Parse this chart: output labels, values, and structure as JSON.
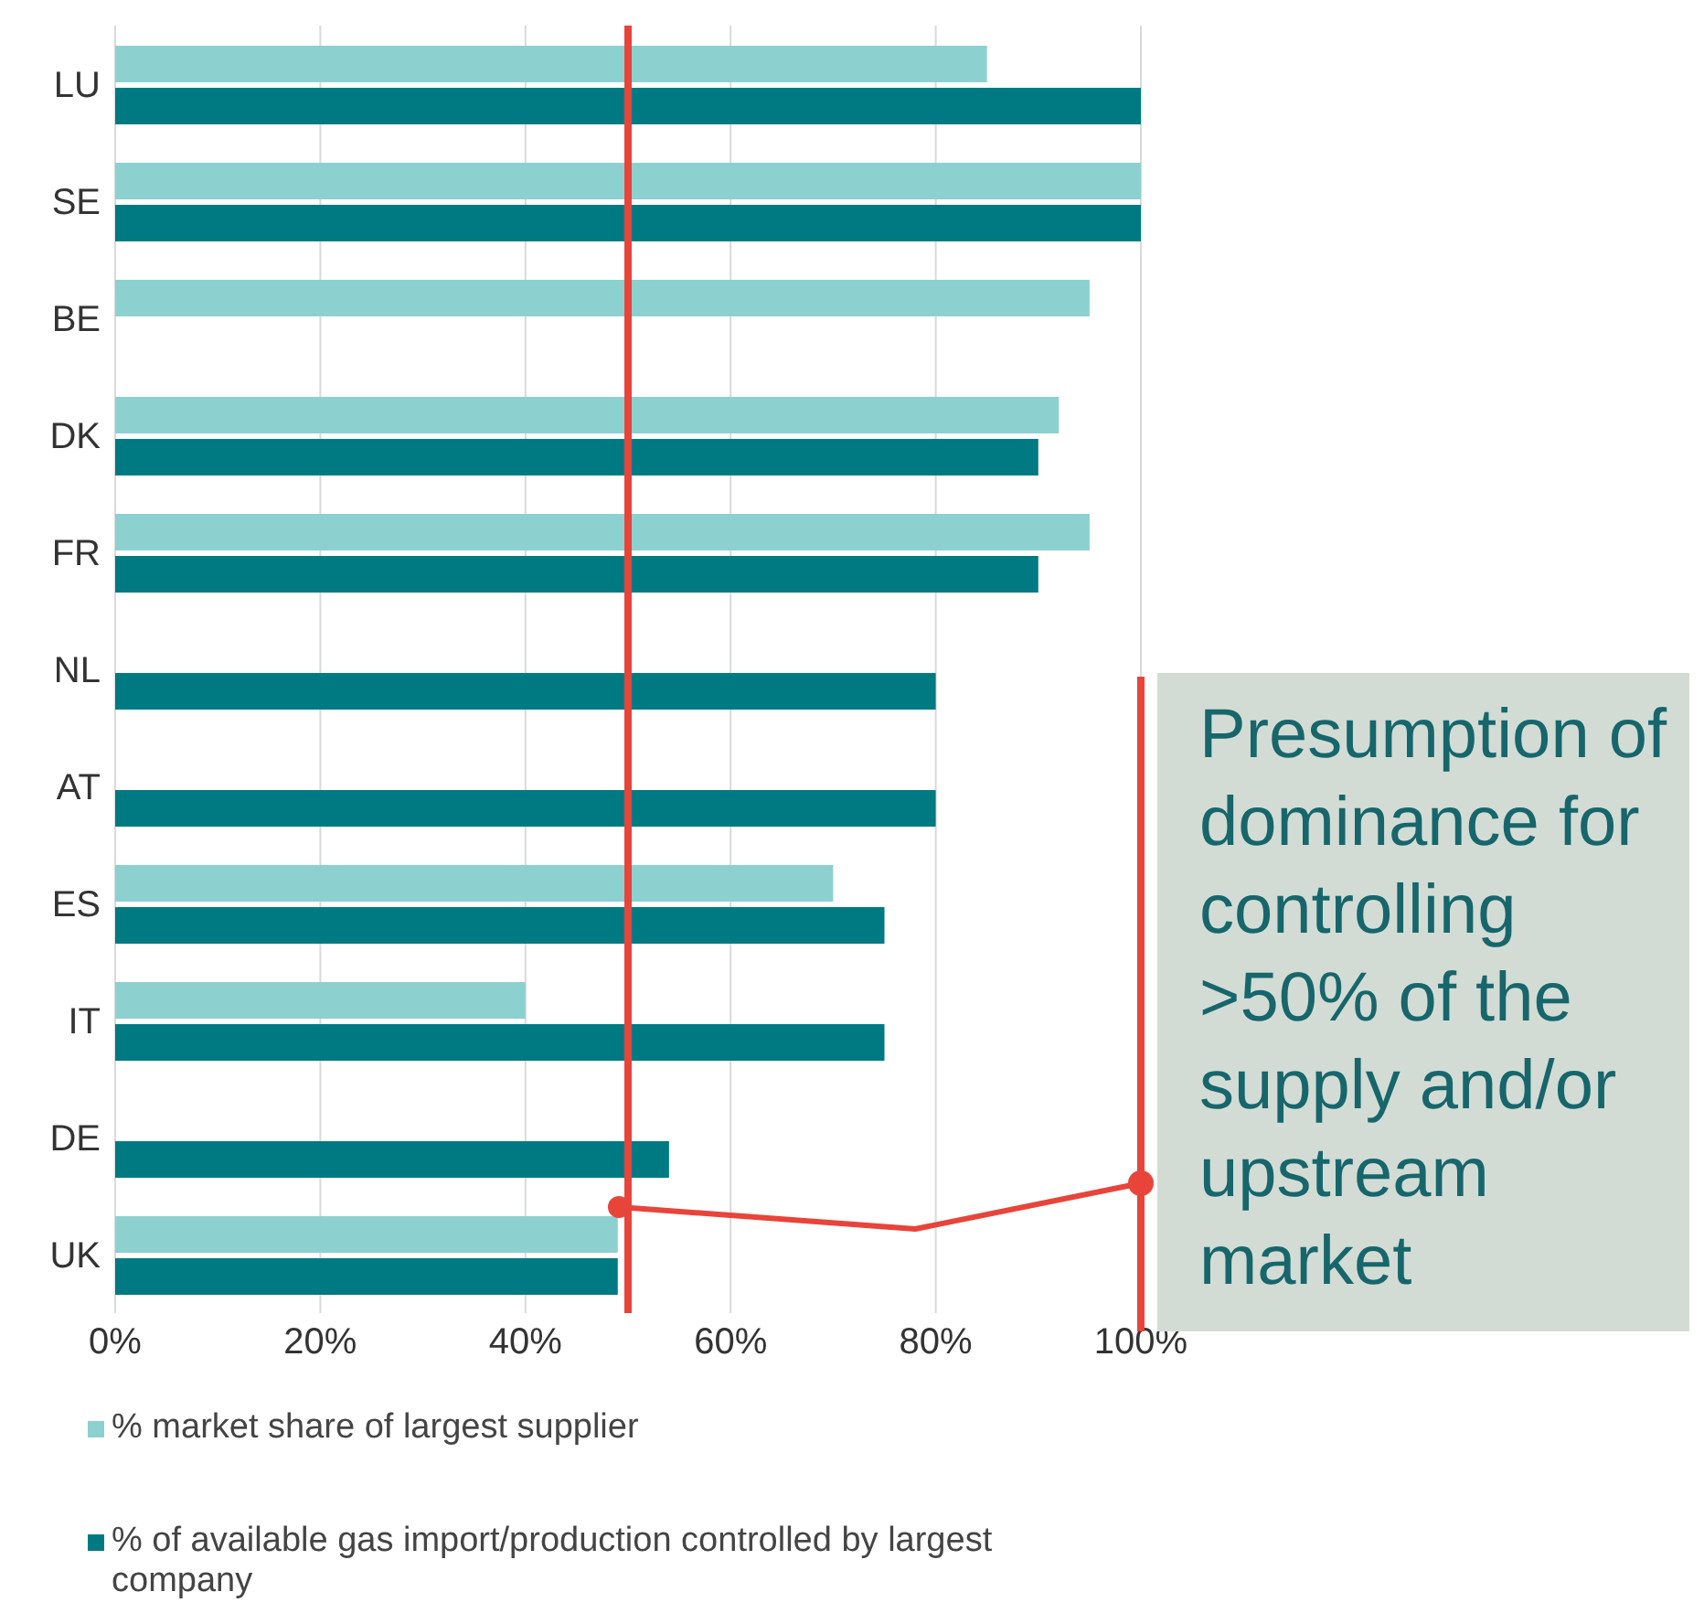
{
  "chart_data": {
    "type": "bar",
    "orientation": "horizontal",
    "categories": [
      "LU",
      "SE",
      "BE",
      "DK",
      "FR",
      "NL",
      "AT",
      "ES",
      "IT",
      "DE",
      "UK"
    ],
    "series": [
      {
        "name": "% market share of largest supplier",
        "color": "#8dd0d0",
        "values": [
          85,
          100,
          95,
          92,
          95,
          null,
          null,
          70,
          40,
          null,
          49
        ]
      },
      {
        "name": "% of available gas import/production controlled by largest company",
        "color": "#007a82",
        "values": [
          100,
          100,
          null,
          90,
          90,
          80,
          80,
          75,
          75,
          54,
          49
        ]
      }
    ],
    "xlim": [
      0,
      100
    ],
    "xticks": [
      {
        "value": 0,
        "label": "0%"
      },
      {
        "value": 20,
        "label": "20%"
      },
      {
        "value": 40,
        "label": "40%"
      },
      {
        "value": 60,
        "label": "60%"
      },
      {
        "value": 80,
        "label": "80%"
      },
      {
        "value": 100,
        "label": "100%"
      }
    ],
    "grid": "x",
    "legend": "bottom left",
    "ref_lines": [
      {
        "axis": "x",
        "value": 50,
        "color": "#e8443a"
      }
    ],
    "annotations": [
      "Presumption of dominance for controlling >50% of the supply and/or upstream market"
    ]
  }
}
